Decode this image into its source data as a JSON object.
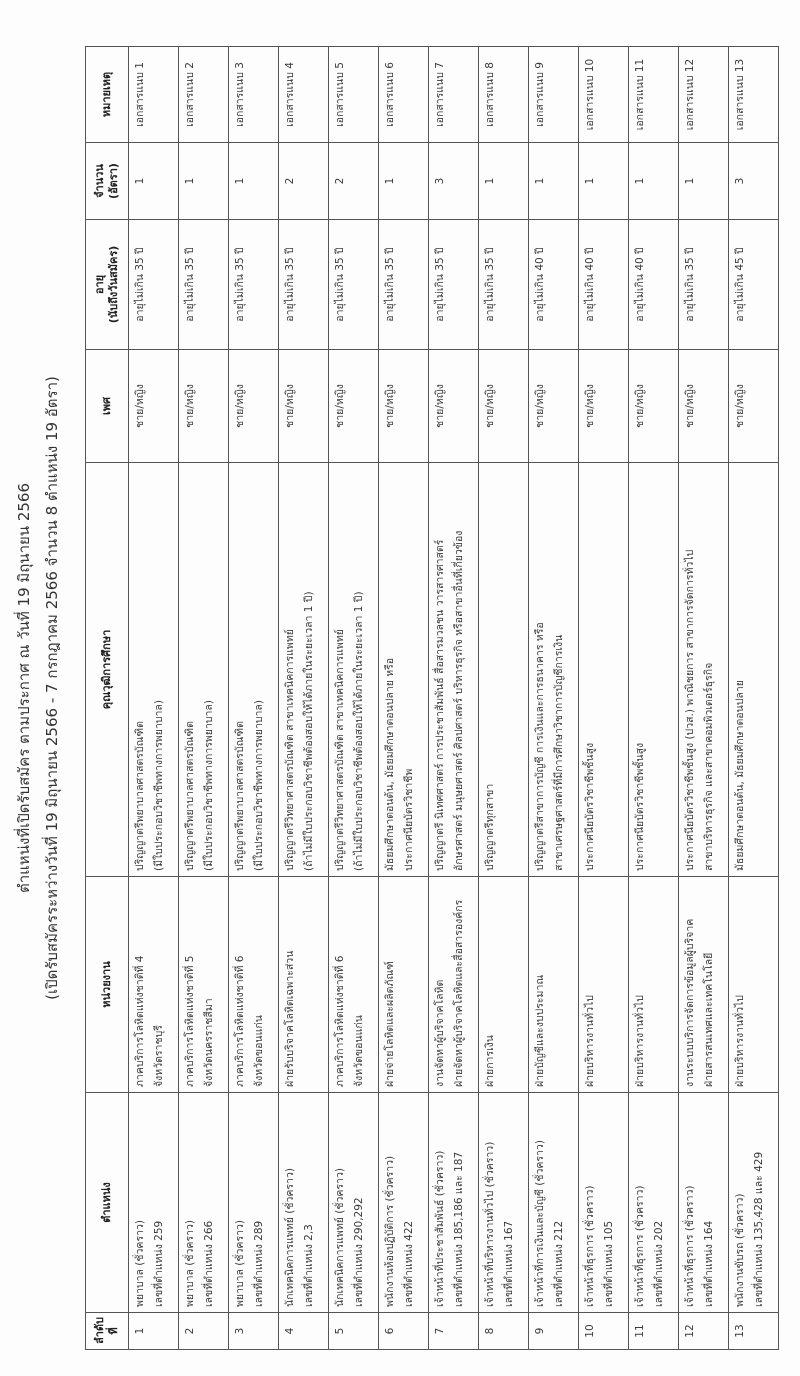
{
  "title": "ตำแหน่งที่เปิดรับสมัคร ตามประกาศ ณ วันที่ 19 มิถุนายน 2566",
  "subtitle": "(เปิดรับสมัครระหว่างวันที่ 19 มิถุนายน 2566 - 7 กรกฎาคม 2566 จำนวน 8 ตำแหน่ง 19 อัตรา)",
  "headers": {
    "seq": "ลำดับที่",
    "position": "ตำแหน่ง",
    "unit": "หน่วยงาน",
    "qualification": "คุณวุฒิการศึกษา",
    "gender": "เพศ",
    "age_1": "อายุ",
    "age_2": "(นับถึงวันสมัคร)",
    "count_1": "จำนวน",
    "count_2": "(อัตรา)",
    "remark": "หมายเหตุ"
  },
  "rows": [
    {
      "seq": "1",
      "pos1": "พยาบาล (ชั่วคราว)",
      "pos2": "เลขที่ตำแหน่ง 259",
      "unit1": "ภาคบริการโลหิตแห่งชาติที่ 4",
      "unit2": "จังหวัดราชบุรี",
      "q1": "ปริญญาตรีพยาบาลศาสตรบัณฑิต",
      "q2": "(มีใบประกอบวิชาชีพทางการพยาบาล)",
      "gender": "ชาย/หญิง",
      "age": "อายุไม่เกิน 35 ปี",
      "count": "1",
      "remark": "เอกสารแนบ 1"
    },
    {
      "seq": "2",
      "pos1": "พยาบาล (ชั่วคราว)",
      "pos2": "เลขที่ตำแหน่ง 266",
      "unit1": "ภาคบริการโลหิตแห่งชาติที่ 5",
      "unit2": "จังหวัดนครราชสีมา",
      "q1": "ปริญญาตรีพยาบาลศาสตรบัณฑิต",
      "q2": "(มีใบประกอบวิชาชีพทางการพยาบาล)",
      "gender": "ชาย/หญิง",
      "age": "อายุไม่เกิน 35 ปี",
      "count": "1",
      "remark": "เอกสารแนบ 2"
    },
    {
      "seq": "3",
      "pos1": "พยาบาล (ชั่วคราว)",
      "pos2": "เลขที่ตำแหน่ง 289",
      "unit1": "ภาคบริการโลหิตแห่งชาติที่ 6",
      "unit2": "จังหวัดขอนแก่น",
      "q1": "ปริญญาตรีพยาบาลศาสตรบัณฑิต",
      "q2": "(มีใบประกอบวิชาชีพทางการพยาบาล)",
      "gender": "ชาย/หญิง",
      "age": "อายุไม่เกิน 35 ปี",
      "count": "1",
      "remark": "เอกสารแนบ 3"
    },
    {
      "seq": "4",
      "pos1": "นักเทคนิคการแพทย์ (ชั่วคราว)",
      "pos2": "เลขที่ตำแหน่ง 2,3",
      "unit1": "ฝ่ายรับบริจาคโลหิตเฉพาะส่วน",
      "unit2": "",
      "q1": "ปริญญาตรีวิทยาศาสตรบัณฑิต สาขาเทคนิคการแพทย์",
      "q2": "(ถ้าไม่มีใบประกอบวิชาชีพต้องสอบให้ได้ภายในระยะเวลา 1 ปี)",
      "gender": "ชาย/หญิง",
      "age": "อายุไม่เกิน 35 ปี",
      "count": "2",
      "remark": "เอกสารแนบ 4"
    },
    {
      "seq": "5",
      "pos1": "นักเทคนิคการแพทย์ (ชั่วคราว)",
      "pos2": "เลขที่ตำแหน่ง 290,292",
      "unit1": "ภาคบริการโลหิตแห่งชาติที่ 6",
      "unit2": "จังหวัดขอนแก่น",
      "q1": "ปริญญาตรีวิทยาศาสตรบัณฑิต สาขาเทคนิคการแพทย์",
      "q2": "(ถ้าไม่มีใบประกอบวิชาชีพต้องสอบให้ได้ภายในระยะเวลา 1 ปี)",
      "gender": "ชาย/หญิง",
      "age": "อายุไม่เกิน 35 ปี",
      "count": "2",
      "remark": "เอกสารแนบ 5"
    },
    {
      "seq": "6",
      "pos1": "พนักงานห้องปฏิบัติการ (ชั่วคราว)",
      "pos2": "เลขที่ตำแหน่ง 422",
      "unit1": "ฝ่ายจ่ายโลหิตและผลิตภัณฑ์",
      "unit2": "",
      "q1": "มัธยมศึกษาตอนต้น, มัธยมศึกษาตอนปลาย หรือ",
      "q2": "ประกาศนียบัตรวิชาชีพ",
      "gender": "ชาย/หญิง",
      "age": "อายุไม่เกิน 35 ปี",
      "count": "1",
      "remark": "เอกสารแนบ 6"
    },
    {
      "seq": "7",
      "pos1": "เจ้าหน้าที่ประชาสัมพันธ์ (ชั่วคราว)",
      "pos2": "เลขที่ตำแหน่ง 185,186 และ 187",
      "unit1": "งานจัดหาผู้บริจาคโลหิต",
      "unit2": "ฝ่ายจัดหาผู้บริจาคโลหิตและสื่อสารองค์กร",
      "q1": "ปริญญาตรี นิเทศศาสตร์ การประชาสัมพันธ์ สื่อสารมวลชน วารสารศาสตร์",
      "q2": "อักษรศาสตร์ มนุษยศาสตร์ ศิลปศาสตร์ บริหารธุรกิจ หรือสาขาอื่นที่เกี่ยวข้อง",
      "gender": "ชาย/หญิง",
      "age": "อายุไม่เกิน 35 ปี",
      "count": "3",
      "remark": "เอกสารแนบ 7"
    },
    {
      "seq": "8",
      "pos1": "เจ้าหน้าที่บริหารงานทั่วไป (ชั่วคราว)",
      "pos2": "เลขที่ตำแหน่ง 167",
      "unit1": "ฝ่ายการเงิน",
      "unit2": "",
      "q1": "ปริญญาตรีทุกสาขา",
      "q2": "",
      "gender": "ชาย/หญิง",
      "age": "อายุไม่เกิน 35 ปี",
      "count": "1",
      "remark": "เอกสารแนบ 8"
    },
    {
      "seq": "9",
      "pos1": "เจ้าหน้าที่การเงินและบัญชี (ชั่วคราว)",
      "pos2": "เลขที่ตำแหน่ง 212",
      "unit1": "ฝ่ายบัญชีและงบประมาณ",
      "unit2": "",
      "q1": "ปริญญาตรีสาขาการบัญชี การเงินและการธนาคาร หรือ",
      "q2": "สาขาเศรษฐศาสตร์ที่มีการศึกษาวิชาการบัญชีการเงิน",
      "gender": "ชาย/หญิง",
      "age": "อายุไม่เกิน 40 ปี",
      "count": "1",
      "remark": "เอกสารแนบ 9"
    },
    {
      "seq": "10",
      "pos1": "เจ้าหน้าที่ธุรการ (ชั่วคราว)",
      "pos2": "เลขที่ตำแหน่ง 105",
      "unit1": "ฝ่ายบริหารงานทั่วไป",
      "unit2": "",
      "q1": "ประกาศนียบัตรวิชาชีพชั้นสูง",
      "q2": "",
      "gender": "ชาย/หญิง",
      "age": "อายุไม่เกิน 40 ปี",
      "count": "1",
      "remark": "เอกสารแนบ 10"
    },
    {
      "seq": "11",
      "pos1": "เจ้าหน้าที่ธุรการ (ชั่วคราว)",
      "pos2": "เลขที่ตำแหน่ง 202",
      "unit1": "ฝ่ายบริหารงานทั่วไป",
      "unit2": "",
      "q1": "ประกาศนียบัตรวิชาชีพชั้นสูง",
      "q2": "",
      "gender": "ชาย/หญิง",
      "age": "อายุไม่เกิน 40 ปี",
      "count": "1",
      "remark": "เอกสารแนบ 11"
    },
    {
      "seq": "12",
      "pos1": "เจ้าหน้าที่ธุรการ (ชั่วคราว)",
      "pos2": "เลขที่ตำแหน่ง 164",
      "unit1": "งานระบบบริการจัดการข้อมูลผู้บริจาค",
      "unit2": "ฝ่ายสารสนเทศและเทคโนโลยี",
      "q1": "ประกาศนียบัตรวิชาชีพชั้นสูง (ปวส.) พาณิชยการ สาขาการจัดการทั่วไป",
      "q2": "สาขาบริหารธุรกิจ และสาขาคอมพิวเตอร์ธุรกิจ",
      "gender": "ชาย/หญิง",
      "age": "อายุไม่เกิน 35 ปี",
      "count": "1",
      "remark": "เอกสารแนบ 12"
    },
    {
      "seq": "13",
      "pos1": "พนักงานขับรถ (ชั่วคราว)",
      "pos2": "เลขที่ตำแหน่ง 135,428 และ 429",
      "unit1": "ฝ่ายบริหารงานทั่วไป",
      "unit2": "",
      "q1": "มัธยมศึกษาตอนต้น, มัธยมศึกษาตอนปลาย",
      "q2": "",
      "gender": "ชาย/หญิง",
      "age": "อายุไม่เกิน 45 ปี",
      "count": "3",
      "remark": "เอกสารแนบ 13"
    }
  ]
}
